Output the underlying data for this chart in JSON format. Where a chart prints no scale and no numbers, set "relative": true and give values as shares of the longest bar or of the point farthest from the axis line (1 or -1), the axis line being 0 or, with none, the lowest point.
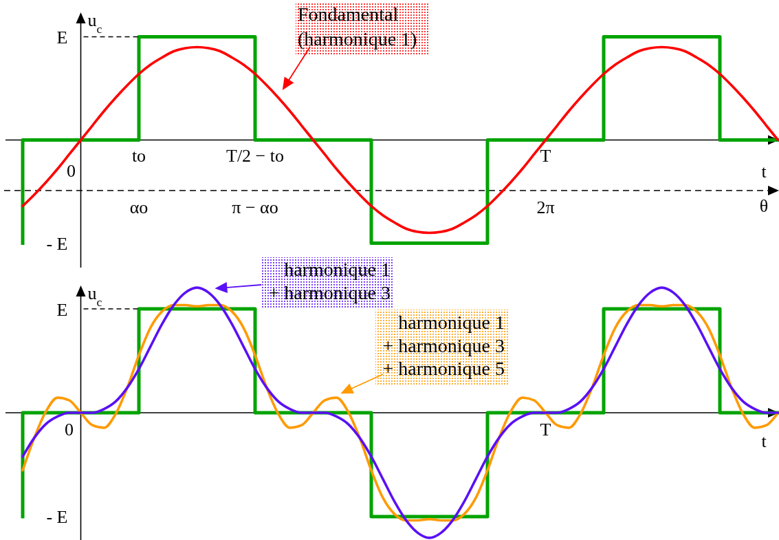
{
  "chart_data": [
    {
      "type": "line",
      "relative": true,
      "xlabel": "t",
      "ylabel": "u$_{c}$",
      "categories": [
        null,
        null,
        null,
        null,
        null,
        null,
        null,
        null,
        null,
        null,
        "to",
        null,
        null,
        null,
        null,
        null,
        null,
        null,
        null,
        null,
        "T/2 − to",
        null,
        null,
        null,
        null,
        null,
        null,
        null,
        null,
        null,
        null,
        null,
        null,
        null,
        null,
        null,
        null,
        null,
        null,
        null,
        null,
        null,
        null,
        null,
        null,
        "T",
        null,
        null,
        null,
        null,
        null,
        null,
        null,
        null,
        null,
        null,
        null,
        null,
        null,
        null,
        null,
        null,
        null,
        null,
        null,
        null
      ],
      "series": [
        {
          "type": "step",
          "color": "#00a300",
          "values": [
            -1,
            0,
            0,
            0,
            0,
            0,
            0,
            0,
            0,
            0,
            0,
            1,
            1,
            1,
            1,
            1,
            1,
            1,
            1,
            1,
            1,
            0,
            0,
            0,
            0,
            0,
            0,
            0,
            0,
            0,
            0,
            -1,
            -1,
            -1,
            -1,
            -1,
            -1,
            -1,
            -1,
            -1,
            -1,
            0,
            0,
            0,
            0,
            0,
            0,
            0,
            0,
            0,
            0,
            1,
            1,
            1,
            1,
            1,
            1,
            1,
            1,
            1,
            1,
            0,
            0,
            0,
            0,
            0
          ]
        },
        {
          "color": "#ff0000",
          "values": [
            -0.64,
            -0.53,
            -0.41,
            -0.28,
            -0.14,
            0,
            0.14,
            0.28,
            0.41,
            0.53,
            0.64,
            0.73,
            0.8,
            0.86,
            0.89,
            0.9,
            0.89,
            0.86,
            0.8,
            0.73,
            0.64,
            0.53,
            0.41,
            0.28,
            0.14,
            0,
            -0.14,
            -0.28,
            -0.41,
            -0.53,
            -0.64,
            -0.73,
            -0.8,
            -0.86,
            -0.89,
            -0.9,
            -0.89,
            -0.86,
            -0.8,
            -0.73,
            -0.64,
            -0.53,
            -0.41,
            -0.28,
            -0.14,
            0,
            0.14,
            0.28,
            0.41,
            0.53,
            0.64,
            0.73,
            0.8,
            0.86,
            0.89,
            0.9,
            0.89,
            0.86,
            0.8,
            0.73,
            0.64,
            0.53,
            0.41,
            0.28,
            0.14,
            0
          ]
        }
      ],
      "ref_lines": [
        {
          "axis": "y",
          "value": -0.49,
          "label": "θ",
          "line_style": "dashed"
        }
      ],
      "annotations": [
        "Fondamental\n(harmonique 1)",
        "E",
        "- E",
        "0",
        "αo",
        "π − αo",
        "2π"
      ]
    },
    {
      "type": "line",
      "relative": true,
      "xlabel": "t",
      "ylabel": "u$_{c}$",
      "categories": [
        null,
        null,
        null,
        null,
        "0",
        null,
        null,
        null,
        null,
        null,
        null,
        null,
        null,
        null,
        null,
        null,
        null,
        null,
        null,
        null,
        null,
        null,
        null,
        null,
        null,
        null,
        null,
        null,
        null,
        null,
        null,
        null,
        null,
        null,
        null,
        null,
        null,
        null,
        null,
        null,
        null,
        null,
        null,
        null,
        null,
        "T",
        null,
        null,
        null,
        null,
        null,
        null,
        null,
        null,
        null,
        null,
        null,
        null,
        null,
        null,
        null,
        null,
        null,
        null,
        null,
        null
      ],
      "series": [
        {
          "type": "step",
          "color": "#00a300",
          "values": [
            -0.83,
            0,
            0,
            0,
            0,
            0,
            0,
            0,
            0,
            0,
            0,
            0.83,
            0.83,
            0.83,
            0.83,
            0.83,
            0.83,
            0.83,
            0.83,
            0.83,
            0.83,
            0,
            0,
            0,
            0,
            0,
            0,
            0,
            0,
            0,
            0,
            -0.83,
            -0.83,
            -0.83,
            -0.83,
            -0.83,
            -0.83,
            -0.83,
            -0.83,
            -0.83,
            -0.83,
            0,
            0,
            0,
            0,
            0,
            0,
            0,
            0,
            0,
            0,
            0.83,
            0.83,
            0.83,
            0.83,
            0.83,
            0.83,
            0.83,
            0.83,
            0.83,
            0.83,
            0,
            0,
            0,
            0,
            0
          ]
        },
        {
          "color": "#ff9a00",
          "values": [
            -0.46,
            -0.2,
            0.01,
            0.12,
            0.1,
            0,
            -0.1,
            -0.12,
            -0.01,
            0.2,
            0.46,
            0.68,
            0.81,
            0.86,
            0.86,
            0.85,
            0.86,
            0.86,
            0.81,
            0.68,
            0.46,
            0.2,
            -0.01,
            -0.12,
            -0.1,
            0,
            0.1,
            0.12,
            0.01,
            -0.2,
            -0.46,
            -0.68,
            -0.81,
            -0.86,
            -0.86,
            -0.85,
            -0.86,
            -0.86,
            -0.81,
            -0.68,
            -0.46,
            -0.2,
            0.01,
            0.12,
            0.1,
            0,
            -0.1,
            -0.12,
            -0.01,
            0.2,
            0.46,
            0.68,
            0.81,
            0.86,
            0.86,
            0.85,
            0.86,
            0.86,
            0.81,
            0.68,
            0.46,
            0.2,
            -0.01,
            -0.12,
            -0.1,
            0
          ]
        },
        {
          "color": "#5a10f5",
          "values": [
            -0.35,
            -0.2,
            -0.09,
            -0.03,
            0,
            0,
            0,
            0.03,
            0.09,
            0.2,
            0.35,
            0.53,
            0.71,
            0.86,
            0.96,
            1,
            0.96,
            0.86,
            0.71,
            0.53,
            0.35,
            0.2,
            0.09,
            0.03,
            0,
            0,
            0,
            -0.03,
            -0.09,
            -0.2,
            -0.35,
            -0.53,
            -0.71,
            -0.86,
            -0.96,
            -1,
            -0.96,
            -0.86,
            -0.71,
            -0.53,
            -0.35,
            -0.2,
            -0.09,
            -0.03,
            0,
            0,
            0,
            0.03,
            0.09,
            0.2,
            0.35,
            0.53,
            0.71,
            0.86,
            0.96,
            1,
            0.96,
            0.86,
            0.71,
            0.53,
            0.35,
            0.2,
            0.09,
            0.03,
            0,
            0
          ]
        }
      ],
      "annotations": [
        "harmonique 1\n+ harmonique 3",
        "harmonique 1\n+ harmonique 3\n+ harmonique 5",
        "E",
        "- E"
      ]
    }
  ]
}
